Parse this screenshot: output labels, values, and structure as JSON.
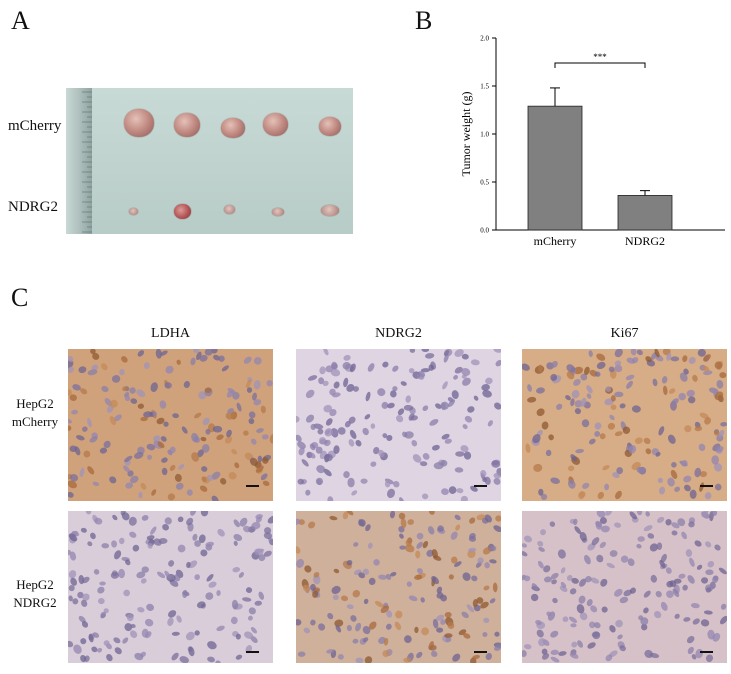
{
  "panel_a": {
    "letter": "A",
    "row_labels": [
      "mCherry",
      "NDRG2"
    ]
  },
  "panel_b": {
    "letter": "B"
  },
  "panel_c": {
    "letter": "C",
    "columns": [
      "LDHA",
      "NDRG2",
      "Ki67"
    ],
    "rows": [
      {
        "line1": "HepG2",
        "line2": "mCherry"
      },
      {
        "line1": "HepG2",
        "line2": "NDRG2"
      }
    ],
    "tile_colors": [
      [
        "#cfa27c",
        "#ded4e2",
        "#d6ad86"
      ],
      [
        "#d9cdd9",
        "#cfb09a",
        "#d7c1c8"
      ]
    ]
  },
  "chart_data": {
    "type": "bar",
    "categories": [
      "mCherry",
      "NDRG2"
    ],
    "values": [
      1.29,
      0.36
    ],
    "errors": [
      0.19,
      0.05
    ],
    "ylabel": "Tumor weight (g)",
    "xlabel": "",
    "ylim": [
      0,
      2.0
    ],
    "yticks": [
      "0.0",
      "0.5",
      "1.0",
      "1.5",
      "2.0"
    ],
    "significance": "***",
    "bar_color": "#808080"
  }
}
